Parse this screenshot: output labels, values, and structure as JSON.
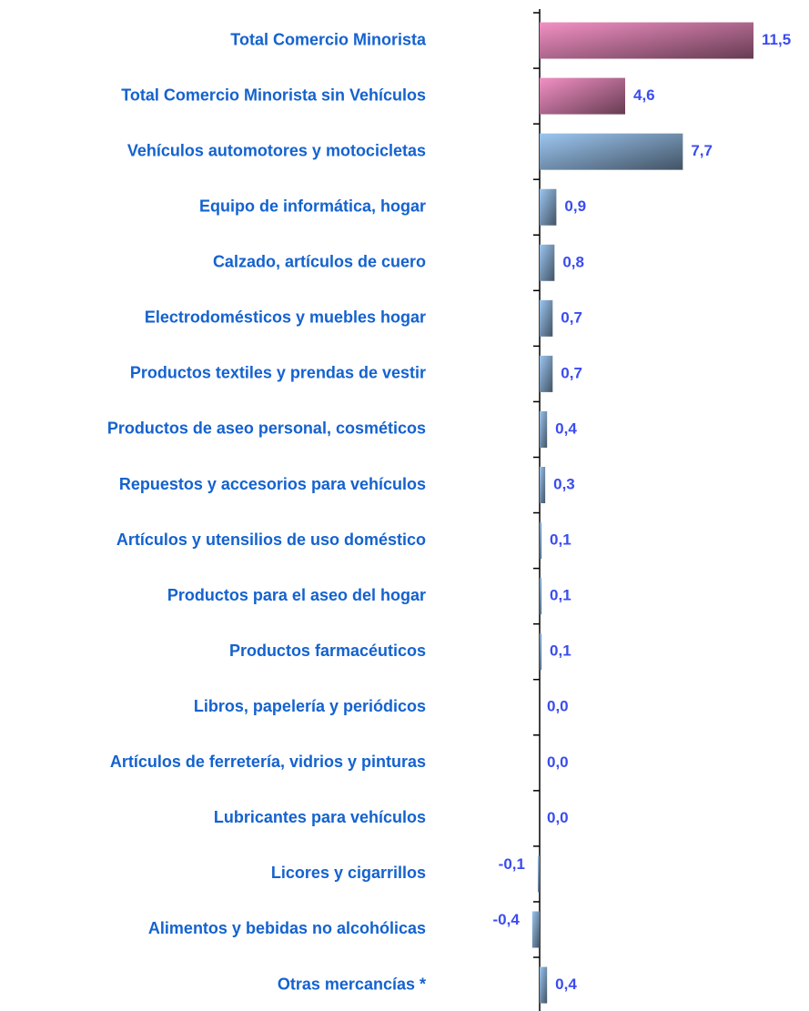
{
  "chart_data": {
    "type": "bar",
    "orientation": "horizontal",
    "categories": [
      "Total Comercio Minorista",
      "Total Comercio Minorista sin Vehículos",
      "Vehículos automotores y motocicletas",
      "Equipo de informática, hogar",
      "Calzado, artículos de cuero",
      "Electrodomésticos y muebles hogar",
      "Productos textiles y prendas de vestir",
      "Productos de aseo personal, cosméticos",
      "Repuestos y accesorios para vehículos",
      "Artículos y utensilios de uso doméstico",
      "Productos para el aseo del  hogar",
      "Productos farmacéuticos",
      "Libros, papelería y periódicos",
      "Artículos de ferretería, vidrios y pinturas",
      "Lubricantes para vehículos",
      "Licores y cigarrillos",
      "Alimentos y bebidas no alcohólicas",
      "Otras mercancías  *"
    ],
    "values": [
      11.5,
      4.6,
      7.7,
      0.9,
      0.8,
      0.7,
      0.7,
      0.4,
      0.3,
      0.1,
      0.1,
      0.1,
      0.0,
      0.0,
      0.0,
      -0.1,
      -0.4,
      0.4
    ],
    "value_labels": [
      "11,5",
      "4,6",
      "7,7",
      "0,9",
      "0,8",
      "0,7",
      "0,7",
      "0,4",
      "0,3",
      "0,1",
      "0,1",
      "0,1",
      "0,0",
      "0,0",
      "0,0",
      "-0,1",
      "-0,4",
      "0,4"
    ],
    "colors": [
      "#f290c4",
      "#f290c4",
      "#9cc6f0",
      "#9cc6f0",
      "#9cc6f0",
      "#9cc6f0",
      "#9cc6f0",
      "#9cc6f0",
      "#9cc6f0",
      "#9cc6f0",
      "#9cc6f0",
      "#9cc6f0",
      "#9cc6f0",
      "#9cc6f0",
      "#9cc6f0",
      "#9cc6f0",
      "#9cc6f0",
      "#9cc6f0"
    ]
  }
}
